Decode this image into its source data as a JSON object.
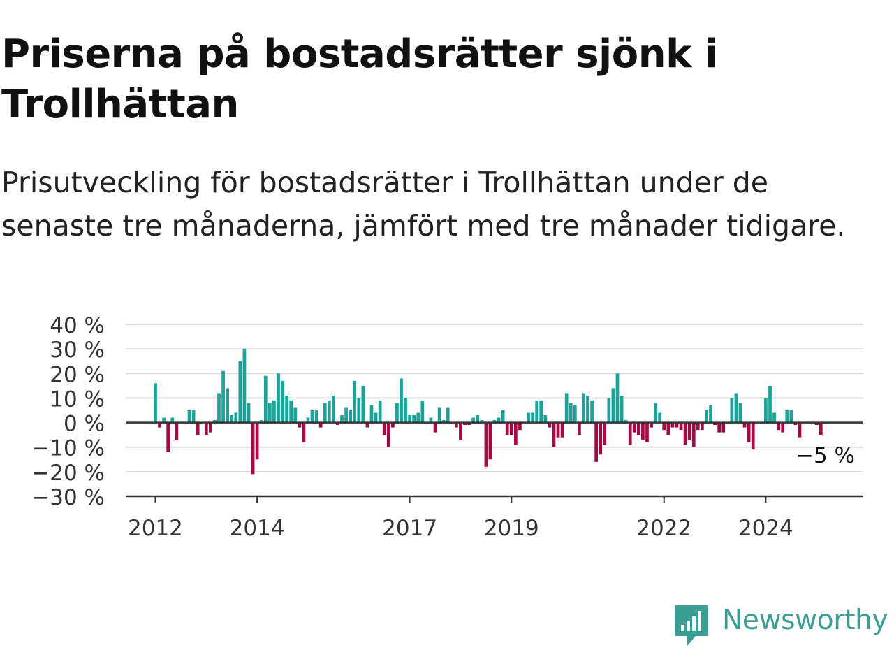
{
  "title": "Priserna på bostadsrätter sjönk i Trollhättan",
  "subtitle": "Prisutveckling för bostadsrätter i Trollhättan under de senaste tre månaderna, jämfört med tre månader tidigare.",
  "brand": {
    "name": "Newsworthy",
    "icon": "newsworthy-logo-icon",
    "color": "#3a9e95"
  },
  "colors": {
    "positive": "#1ba39a",
    "negative": "#a50a45",
    "grid": "#dddddd",
    "axis": "#333333"
  },
  "chart_data": {
    "type": "bar",
    "ylim": [
      -30,
      40
    ],
    "yticks": [
      40,
      30,
      20,
      10,
      0,
      -10,
      -20,
      -30
    ],
    "ytick_labels": [
      "40 %",
      "30 %",
      "20 %",
      "10 %",
      "0 %",
      "−10 %",
      "−20 %",
      "−30 %"
    ],
    "xlim": [
      "2011-06",
      "2025-12"
    ],
    "xticks": [
      "2012-01",
      "2014-01",
      "2017-01",
      "2019-01",
      "2022-01",
      "2024-01"
    ],
    "xtick_labels": [
      "2012",
      "2014",
      "2017",
      "2019",
      "2022",
      "2024"
    ],
    "start_month": "2012-01",
    "values": [
      16,
      -2,
      2,
      -12,
      2,
      -7,
      0,
      0,
      5,
      5,
      -5,
      0,
      -5,
      -4,
      1,
      12,
      21,
      14,
      3,
      4,
      25,
      30,
      8,
      -21,
      -15,
      1,
      19,
      8,
      9,
      20,
      17,
      11,
      9,
      6,
      -2,
      -8,
      2,
      5,
      5,
      -2,
      8,
      9,
      11,
      -1,
      3,
      6,
      5,
      17,
      10,
      15,
      -2,
      7,
      4,
      9,
      -5,
      -10,
      -2,
      8,
      18,
      10,
      3,
      3,
      4,
      9,
      0,
      2,
      -4,
      6,
      1,
      6,
      0,
      -2,
      -7,
      -1,
      -1,
      2,
      3,
      1,
      -18,
      -15,
      1,
      2,
      5,
      -5,
      -5,
      -9,
      -3,
      0,
      4,
      4,
      9,
      9,
      3,
      -2,
      -10,
      -6,
      -6,
      12,
      8,
      7,
      -5,
      12,
      11,
      9,
      -16,
      -13,
      -9,
      10,
      14,
      20,
      11,
      1,
      -9,
      -4,
      -5,
      -7,
      -8,
      -2,
      8,
      4,
      -3,
      -5,
      -2,
      -2,
      -3,
      -9,
      -7,
      -10,
      -3,
      -3,
      5,
      7,
      -1,
      -4,
      -4,
      0,
      10,
      12,
      8,
      -2,
      -8,
      -11,
      0,
      0,
      10,
      15,
      4,
      -3,
      -4,
      5,
      5,
      -1,
      -6,
      0,
      0,
      0,
      -1,
      -5
    ],
    "annotation": {
      "text": "−5 %",
      "value": -5
    }
  }
}
